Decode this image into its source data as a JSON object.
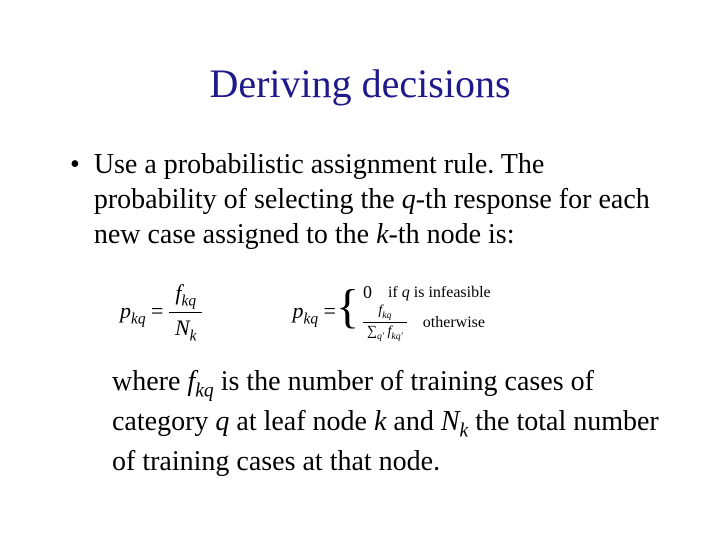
{
  "title": "Deriving decisions",
  "title_color": "#1f1a8a",
  "body_color": "#000000",
  "background_color": "#ffffff",
  "bullet": {
    "pre": "Use a probabilistic assignment rule. The probability of selecting the ",
    "q_var": "q",
    "mid1": "-th response for each new case assigned to the ",
    "k_var": "k",
    "mid2": "-th node is:"
  },
  "eq1": {
    "lhs_p": "p",
    "lhs_sub": "kq",
    "eq": " = ",
    "num_f": "f",
    "num_sub": "kq",
    "den_N": "N",
    "den_sub": "k"
  },
  "eq2": {
    "lhs_p": "p",
    "lhs_sub": "kq",
    "eq": " = ",
    "case1_val": "0",
    "case1_cond_pre": "if ",
    "case1_cond_var": "q",
    "case1_cond_post": " is infeasible",
    "case2_num_f": "f",
    "case2_num_sub": "kq",
    "case2_den_sum": "∑",
    "case2_den_sumsub": "q′",
    "case2_den_f": " f",
    "case2_den_fsub": "kq′",
    "case2_cond": "otherwise"
  },
  "followup": {
    "pre": "where ",
    "f_var": "f",
    "f_sub": "kq",
    "mid1": " is the number of training cases of category ",
    "q_var": "q",
    "mid2": " at leaf node ",
    "k_var": "k",
    "mid3": " and ",
    "N_var": "N",
    "N_sub": "k",
    "mid4": " the total number of training cases at that node."
  }
}
